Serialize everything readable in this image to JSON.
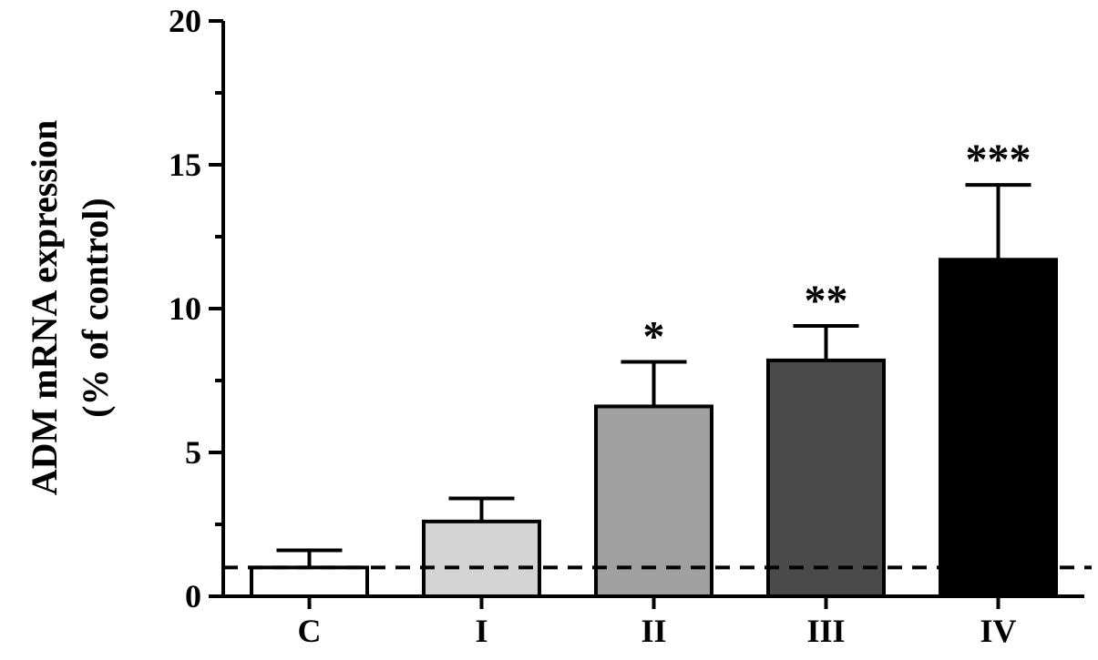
{
  "chart_data": {
    "type": "bar",
    "title": "",
    "xlabel": "",
    "ylabel_lines": [
      "ADM mRNA expression",
      "(% of control)"
    ],
    "ylim": [
      0,
      20
    ],
    "yticks": [
      0,
      5,
      10,
      15,
      20
    ],
    "categories": [
      "C",
      "I",
      "II",
      "III",
      "IV"
    ],
    "values": [
      1.0,
      2.6,
      6.6,
      8.2,
      11.7
    ],
    "error_upper": [
      1.6,
      3.4,
      8.15,
      9.4,
      14.3
    ],
    "significance": [
      "",
      "",
      "*",
      "**",
      "***"
    ],
    "reference_line": 1.0,
    "colors": {
      "fills": [
        "#ffffff",
        "#d4d4d4",
        "#a0a0a0",
        "#4a4a4a",
        "#000000"
      ],
      "axis": "#000000",
      "reference_line": "#000000"
    }
  }
}
